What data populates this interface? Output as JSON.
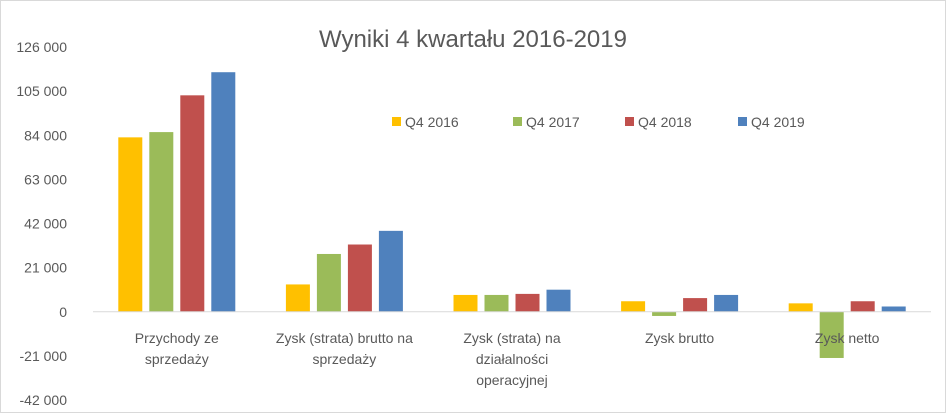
{
  "chart_data": {
    "type": "bar",
    "title": "Wyniki 4 kwartału 2016-2019",
    "xlabel": "",
    "ylabel": "",
    "ylim": [
      -42000,
      126000
    ],
    "yticks": [
      -42000,
      -21000,
      0,
      21000,
      42000,
      63000,
      84000,
      105000,
      126000
    ],
    "ytick_labels": [
      "-42 000",
      "-21 000",
      "0",
      "21 000",
      "42 000",
      "63 000",
      "84 000",
      "105 000",
      "126 000"
    ],
    "categories": [
      [
        "Przychody ze",
        "sprzedaży"
      ],
      [
        "Zysk (strata) brutto na",
        "sprzedaży"
      ],
      [
        "Zysk (strata) na",
        "działalności",
        "operacyjnej"
      ],
      [
        "Zysk brutto"
      ],
      [
        "Zysk netto"
      ]
    ],
    "series": [
      {
        "name": "Q4 2016",
        "color": "#FFC000",
        "values": [
          83000,
          13000,
          8000,
          5000,
          4000
        ]
      },
      {
        "name": "Q4 2017",
        "color": "#9BBB59",
        "values": [
          85500,
          27500,
          8000,
          -2000,
          -22000
        ]
      },
      {
        "name": "Q4 2018",
        "color": "#C0504D",
        "values": [
          103000,
          32000,
          8500,
          6500,
          5000
        ]
      },
      {
        "name": "Q4 2019",
        "color": "#4F81BD",
        "values": [
          114000,
          38500,
          10500,
          8000,
          2500
        ]
      }
    ],
    "grid": false,
    "legend_position": "top-right"
  }
}
